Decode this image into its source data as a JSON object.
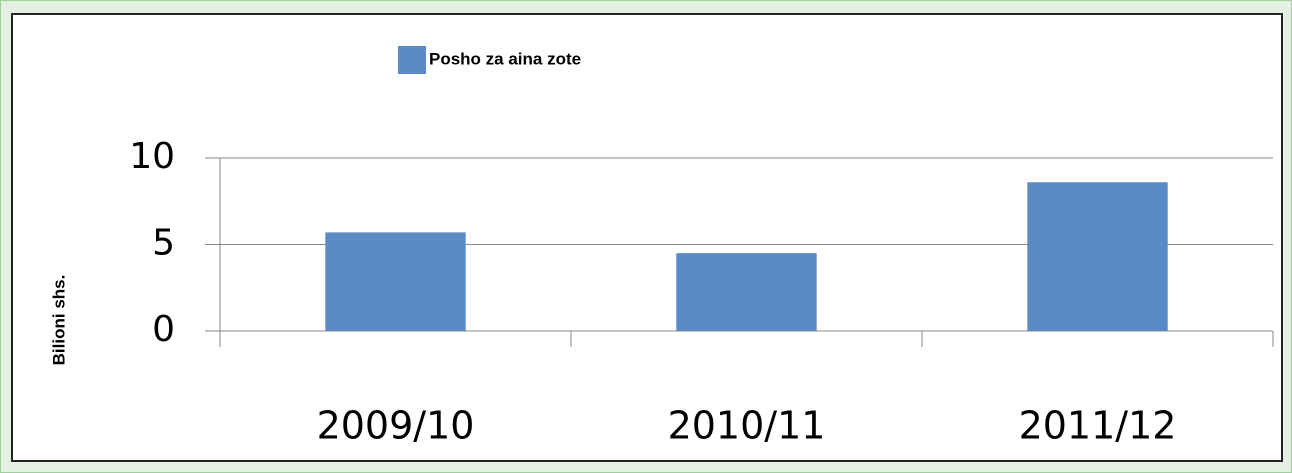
{
  "chart_data": {
    "type": "bar",
    "y_label": "Bilioni shs.",
    "categories": [
      "2009/10",
      "2010/11",
      "2011/12"
    ],
    "series": [
      {
        "name": "Posho za aina zote",
        "color": "#5b8bc5",
        "values": [
          5.7,
          4.5,
          8.6
        ]
      }
    ],
    "ylim": [
      0,
      10
    ],
    "yticks": [
      0,
      5,
      10
    ],
    "grid": true,
    "legend": "top"
  }
}
